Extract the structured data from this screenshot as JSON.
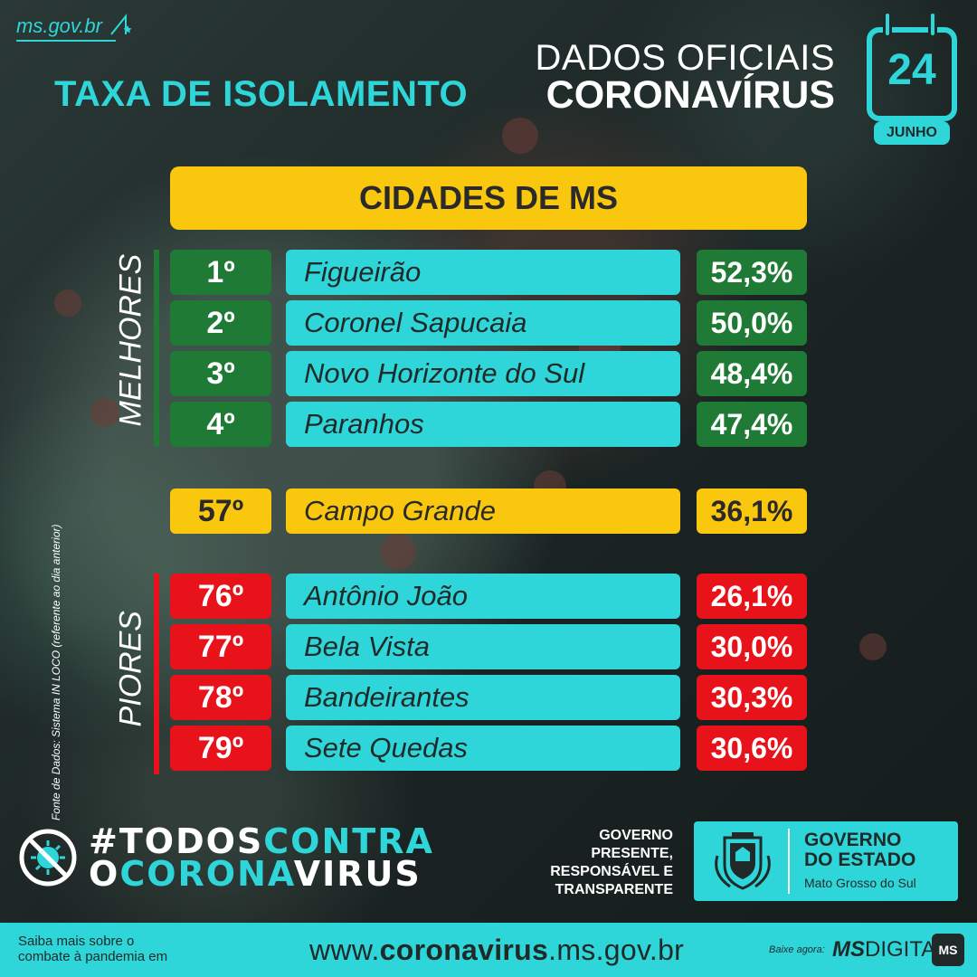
{
  "header": {
    "site": "ms.gov.br",
    "headline": "TAXA DE ISOLAMENTO",
    "oficial_line1": "DADOS OFICIAIS",
    "oficial_line2": "CORONAVÍRUS",
    "calendar_day": "24",
    "calendar_month": "JUNHO"
  },
  "table": {
    "title": "CIDADES DE MS",
    "best_label": "MELHORES",
    "worst_label": "PIORES",
    "best": [
      {
        "rank": "1º",
        "city": "Figueirão",
        "pct": "52,3%"
      },
      {
        "rank": "2º",
        "city": "Coronel Sapucaia",
        "pct": "50,0%"
      },
      {
        "rank": "3º",
        "city": "Novo Horizonte do Sul",
        "pct": "48,4%"
      },
      {
        "rank": "4º",
        "city": "Paranhos",
        "pct": "47,4%"
      }
    ],
    "capital": {
      "rank": "57º",
      "city": "Campo Grande",
      "pct": "36,1%"
    },
    "worst": [
      {
        "rank": "76º",
        "city": "Antônio João",
        "pct": "26,1%"
      },
      {
        "rank": "77º",
        "city": "Bela Vista",
        "pct": "30,0%"
      },
      {
        "rank": "78º",
        "city": "Bandeirantes",
        "pct": "30,3%"
      },
      {
        "rank": "79º",
        "city": "Sete Quedas",
        "pct": "30,6%"
      }
    ],
    "source": "Fonte de Dados: Sistema IN LOCO (referente ao dia anterior)"
  },
  "campaign": {
    "part1": "#TODOS",
    "part2": "CONTRA",
    "part3": "O",
    "part4": "CORONA",
    "part5": "VIRUS"
  },
  "government": {
    "slogan_lines": [
      "GOVERNO",
      "PRESENTE,",
      "RESPONSÁVEL E",
      "TRANSPARENTE"
    ],
    "box_line1": "GOVERNO",
    "box_line2": "DO ESTADO",
    "box_line3": "Mato Grosso do Sul"
  },
  "footer": {
    "text_line1": "Saiba mais sobre o",
    "text_line2": "combate à pandemia em",
    "url_prefix": "www.",
    "url_bold": "coronavirus",
    "url_suffix": ".ms.gov.br",
    "download_label": "Baixe agora:",
    "app_bold": "MS",
    "app_rest": "DIGITAL",
    "app_icon": "MS"
  },
  "colors": {
    "cyan": "#2fd6d9",
    "yellow": "#f9c80e",
    "green": "#1e7a34",
    "red": "#e8121a"
  },
  "icons": [
    "site-mark-icon",
    "calendar-icon",
    "no-virus-icon",
    "state-crest-icon",
    "ms-digital-icon"
  ]
}
